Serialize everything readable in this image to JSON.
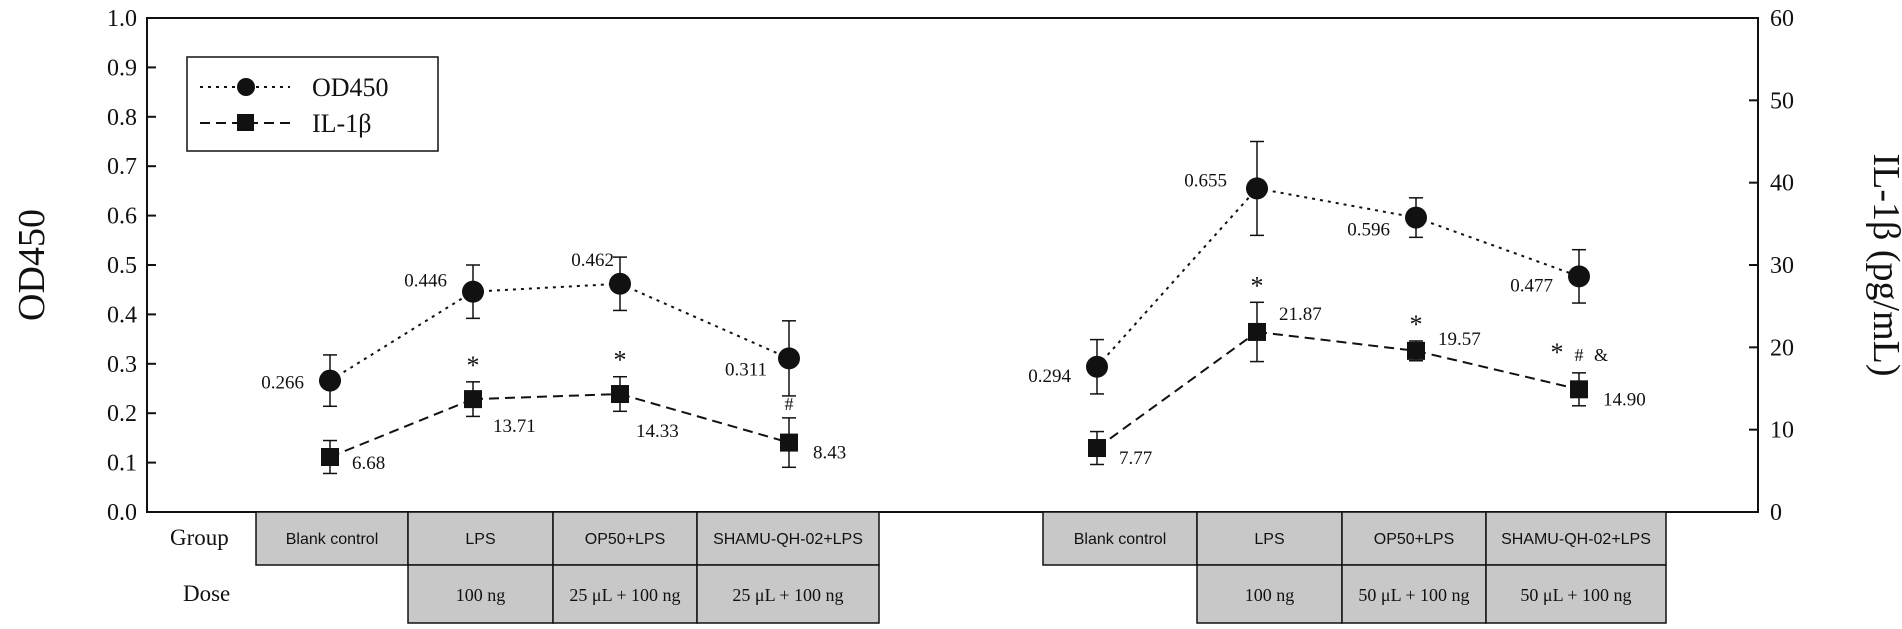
{
  "chart_data": {
    "type": "line",
    "y_left": {
      "label": "OD450",
      "min": 0.0,
      "max": 1.0,
      "ticks": [
        "0.0",
        "0.1",
        "0.2",
        "0.3",
        "0.4",
        "0.5",
        "0.6",
        "0.7",
        "0.8",
        "0.9",
        "1.0"
      ]
    },
    "y_right": {
      "label": "IL-1β (pg/mL)",
      "min": 0,
      "max": 60,
      "ticks": [
        "0",
        "10",
        "20",
        "30",
        "40",
        "50",
        "60"
      ]
    },
    "legend": {
      "placement": "top-left",
      "items": [
        "OD450",
        "IL-1β"
      ]
    },
    "table": {
      "row_titles": {
        "group": "Group",
        "dose": "Dose"
      },
      "panels": [
        {
          "groups": [
            "Blank control",
            "LPS",
            "OP50+LPS",
            "SHAMU-QH-02+LPS"
          ],
          "doses": [
            "",
            "100 ng",
            "25 μL + 100 ng",
            "25 μL + 100 ng"
          ]
        },
        {
          "groups": [
            "Blank control",
            "LPS",
            "OP50+LPS",
            "SHAMU-QH-02+LPS"
          ],
          "doses": [
            "",
            "100 ng",
            "50 μL + 100 ng",
            "50 μL + 100 ng"
          ]
        }
      ]
    },
    "panels": [
      {
        "series": [
          {
            "name": "OD450",
            "axis": "left",
            "line": "dotted",
            "marker": "circle",
            "values": [
              0.266,
              0.446,
              0.462,
              0.311
            ],
            "errors": [
              0.052,
              0.054,
              0.054,
              0.076
            ],
            "labels": [
              "0.266",
              "0.446",
              "0.462",
              "0.311"
            ],
            "annotations": [
              "",
              "",
              "",
              ""
            ]
          },
          {
            "name": "IL-1β",
            "axis": "right",
            "line": "dashed",
            "marker": "square",
            "values": [
              6.68,
              13.71,
              14.33,
              8.43
            ],
            "errors": [
              2.0,
              2.1,
              2.1,
              3.0
            ],
            "labels": [
              "6.68",
              "13.71",
              "14.33",
              "8.43"
            ],
            "annotations": [
              "",
              "*",
              "*",
              "#"
            ]
          }
        ]
      },
      {
        "series": [
          {
            "name": "OD450",
            "axis": "left",
            "line": "dotted",
            "marker": "circle",
            "values": [
              0.294,
              0.655,
              0.596,
              0.477
            ],
            "errors": [
              0.055,
              0.095,
              0.04,
              0.054
            ],
            "labels": [
              "0.294",
              "0.655",
              "0.596",
              "0.477"
            ],
            "annotations": [
              "",
              "",
              "",
              ""
            ]
          },
          {
            "name": "IL-1β",
            "axis": "right",
            "line": "dashed",
            "marker": "square",
            "values": [
              7.77,
              21.87,
              19.57,
              14.9
            ],
            "errors": [
              2.0,
              3.6,
              1.2,
              2.0
            ],
            "labels": [
              "7.77",
              "21.87",
              "19.57",
              "14.90"
            ],
            "annotations": [
              "",
              "*",
              "*",
              "* # &"
            ]
          }
        ]
      }
    ]
  }
}
